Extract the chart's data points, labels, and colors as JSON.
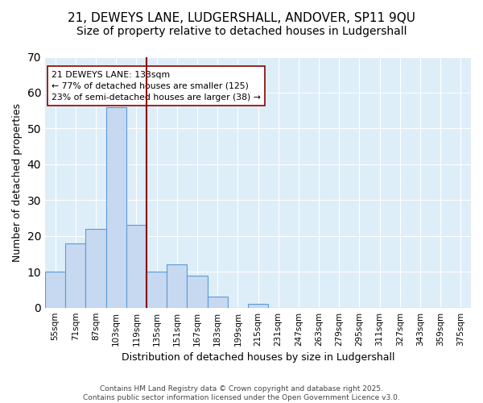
{
  "title": "21, DEWEYS LANE, LUDGERSHALL, ANDOVER, SP11 9QU",
  "subtitle": "Size of property relative to detached houses in Ludgershall",
  "xlabel": "Distribution of detached houses by size in Ludgershall",
  "ylabel": "Number of detached properties",
  "footer_line1": "Contains HM Land Registry data © Crown copyright and database right 2025.",
  "footer_line2": "Contains public sector information licensed under the Open Government Licence v3.0.",
  "bins": [
    "55sqm",
    "71sqm",
    "87sqm",
    "103sqm",
    "119sqm",
    "135sqm",
    "151sqm",
    "167sqm",
    "183sqm",
    "199sqm",
    "215sqm",
    "231sqm",
    "247sqm",
    "263sqm",
    "279sqm",
    "295sqm",
    "311sqm",
    "327sqm",
    "343sqm",
    "359sqm",
    "375sqm"
  ],
  "values": [
    10,
    18,
    22,
    56,
    23,
    10,
    12,
    9,
    3,
    0,
    1,
    0,
    0,
    0,
    0,
    0,
    0,
    0,
    0,
    0,
    0
  ],
  "bar_color": "#c6d9f0",
  "bar_edge_color": "#5b9bd5",
  "vline_color": "#8B0000",
  "vline_pos": 4.5,
  "annotation_title": "21 DEWEYS LANE: 133sqm",
  "annotation_line2": "← 77% of detached houses are smaller (125)",
  "annotation_line3": "23% of semi-detached houses are larger (38) →",
  "annotation_box_color": "#ffffff",
  "annotation_box_edge": "#8B0000",
  "ylim": [
    0,
    70
  ],
  "yticks": [
    0,
    10,
    20,
    30,
    40,
    50,
    60,
    70
  ],
  "bg_color": "#ddeef9",
  "fig_bg_color": "#ffffff",
  "title_fontsize": 11,
  "subtitle_fontsize": 10
}
